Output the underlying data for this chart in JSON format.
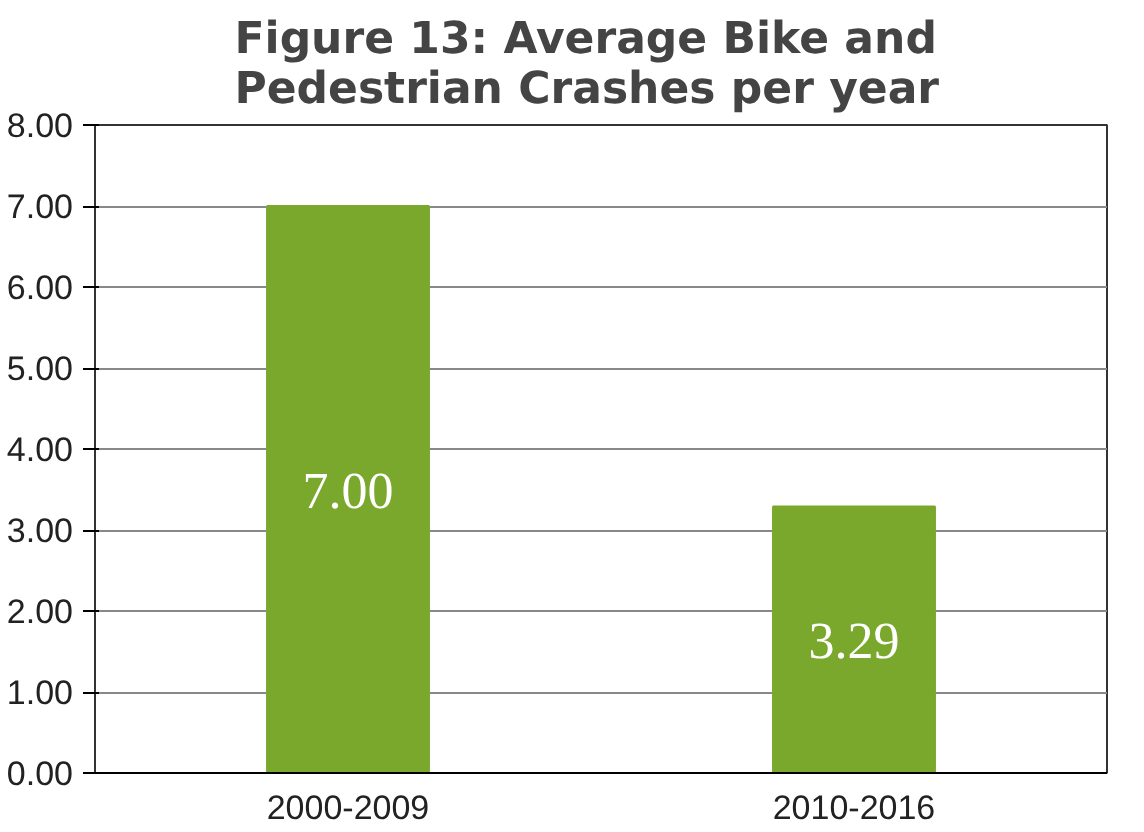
{
  "chart_data": {
    "type": "bar",
    "title": "Figure 13:   Average Bike and\nPedestrian Crashes per year",
    "categories": [
      "2000-2009",
      "2010-2016"
    ],
    "values": [
      7.0,
      3.29
    ],
    "value_labels": [
      "7.00",
      "3.29"
    ],
    "color": "#7aa82c",
    "ylim": [
      0,
      8
    ],
    "yticks": [
      {
        "value": 0,
        "label": "0.00"
      },
      {
        "value": 1,
        "label": "1.00"
      },
      {
        "value": 2,
        "label": "2.00"
      },
      {
        "value": 3,
        "label": "3.00"
      },
      {
        "value": 4,
        "label": "4.00"
      },
      {
        "value": 5,
        "label": "5.00"
      },
      {
        "value": 6,
        "label": "6.00"
      },
      {
        "value": 7,
        "label": "7.00"
      },
      {
        "value": 8,
        "label": "8.00"
      }
    ],
    "grid": "y"
  }
}
